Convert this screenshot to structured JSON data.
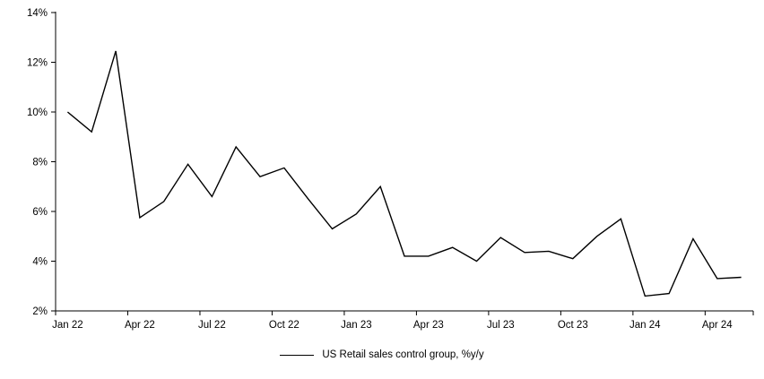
{
  "chart_data": {
    "type": "line",
    "title": "",
    "xlabel": "",
    "ylabel": "",
    "x": [
      "Jan 22",
      "Feb 22",
      "Mar 22",
      "Apr 22",
      "May 22",
      "Jun 22",
      "Jul 22",
      "Aug 22",
      "Sep 22",
      "Oct 22",
      "Nov 22",
      "Dec 22",
      "Jan 23",
      "Feb 23",
      "Mar 23",
      "Apr 23",
      "May 23",
      "Jun 23",
      "Jul 23",
      "Aug 23",
      "Sep 23",
      "Oct 23",
      "Nov 23",
      "Dec 23",
      "Jan 24",
      "Feb 24",
      "Mar 24",
      "Apr 24",
      "May 24"
    ],
    "series": [
      {
        "name": "US Retail sales control group, %y/y",
        "color": "#000000",
        "values": [
          10.0,
          9.2,
          12.45,
          5.75,
          6.4,
          7.9,
          6.6,
          8.6,
          7.4,
          7.75,
          6.5,
          5.3,
          5.9,
          7.0,
          4.2,
          4.2,
          4.55,
          4.0,
          4.95,
          4.35,
          4.4,
          4.1,
          5.0,
          5.7,
          2.6,
          2.7,
          4.9,
          3.3,
          3.35
        ]
      }
    ],
    "ylim": [
      2,
      14
    ],
    "ytick_step": 2,
    "ytick_labels": [
      "2%",
      "4%",
      "6%",
      "8%",
      "10%",
      "12%",
      "14%"
    ],
    "xtick_labels": [
      "Jan 22",
      "Apr 22",
      "Jul 22",
      "Oct 22",
      "Jan 23",
      "Apr 23",
      "Jul 23",
      "Oct 23",
      "Jan 24",
      "Apr 24"
    ],
    "xtick_every": 3,
    "grid": false,
    "legend_position": "bottom-center",
    "background": "#ffffff",
    "axis_color": "#000000",
    "text_color": "#000000"
  },
  "legend": {
    "label": "US Retail sales control group, %y/y"
  }
}
